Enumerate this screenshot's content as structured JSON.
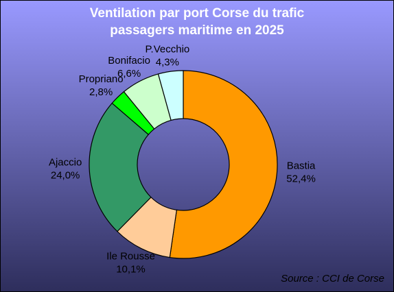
{
  "chart_data": {
    "type": "donut",
    "title": [
      "Ventilation par port Corse du trafic",
      "passagers maritime en 2025"
    ],
    "categories": [
      "Bastia",
      "Ile Rousse",
      "Ajaccio",
      "Propriano",
      "Bonifacio",
      "P.Vecchio"
    ],
    "values": [
      52.4,
      10.1,
      24.0,
      2.8,
      6.6,
      4.3
    ],
    "value_labels": [
      "52,4%",
      "10,1%",
      "24,0%",
      "2,8%",
      "6,6%",
      "4,3%"
    ],
    "colors": [
      "#ff9900",
      "#ffcc99",
      "#339966",
      "#00ff00",
      "#ccffcc",
      "#ccffff"
    ],
    "source": "Source : CCI de Corse"
  }
}
